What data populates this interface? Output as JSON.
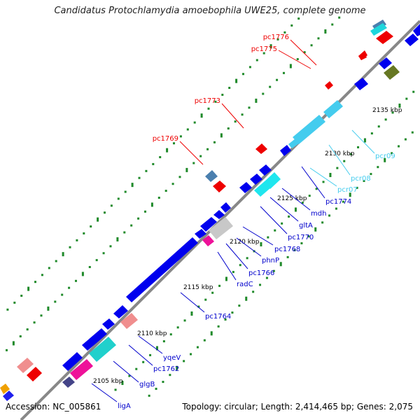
{
  "title": "Candidatus Protochlamydia amoebophila UWE25, complete genome",
  "footer": {
    "accession": "Accession: NC_005861",
    "topology": "Topology: circular; Length: 2,414,465 bp; Genes: 2,075"
  },
  "scale_labels": [
    "2105 kbp",
    "2110 kbp",
    "2115 kbp",
    "2120 kbp",
    "2125 kbp",
    "2130 kbp",
    "2135 kbp"
  ],
  "colors": {
    "cds": "#0000ee",
    "rna": "#ff0000",
    "pseudo": "#44ccee",
    "backbone": "#888888",
    "tick": "#228822"
  },
  "gene_labels": {
    "pc1776": "pc1776",
    "pc1775": "pc1775",
    "pc1773": "pc1773",
    "pc1769": "pc1769",
    "pcr09": "pcr09",
    "pcr08": "pcr08",
    "pcr07": "pcr07",
    "pc1774": "pc1774",
    "mdh": "mdh",
    "gltA": "gltA",
    "pc1770": "pc1770",
    "pc1768": "pc1768",
    "phnP": "phnP",
    "pc1766": "pc1766",
    "radC": "radC",
    "pc1764": "pc1764",
    "yqeV": "yqeV",
    "pc1762": "pc1762",
    "glgB": "glgB",
    "ligA": "ligA"
  }
}
